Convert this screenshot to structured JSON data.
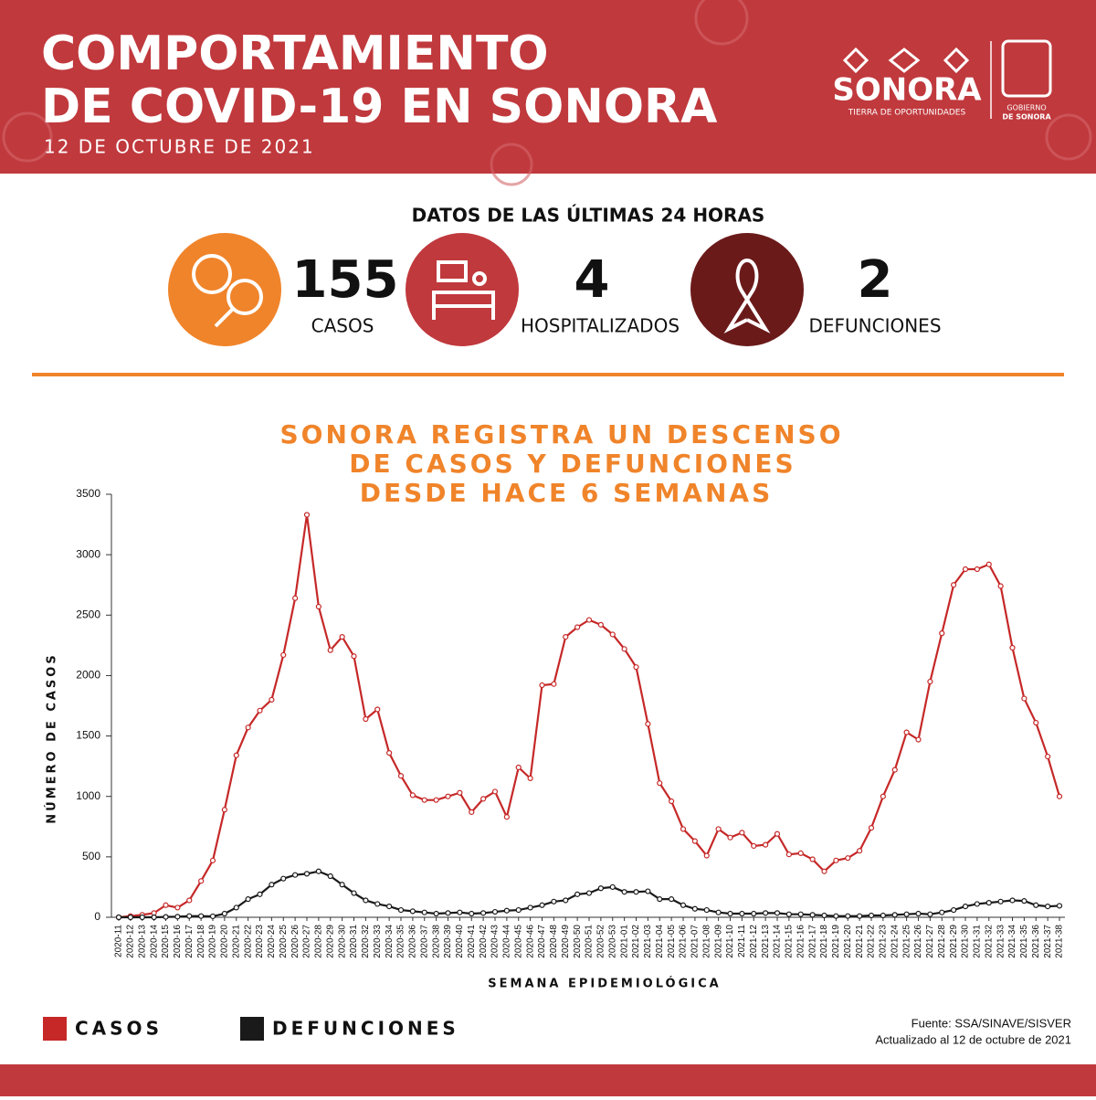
{
  "header": {
    "title_lines": [
      "COMPORTAMIENTO",
      "DE COVID-19 EN SONORA"
    ],
    "date": "12 DE OCTUBRE DE 2021",
    "logo": {
      "name": "SONORA",
      "tagline": "TIERRA DE OPORTUNIDADES",
      "government_lines": [
        "GOBIERNO",
        "DE SONORA"
      ]
    }
  },
  "stats": {
    "title": "DATOS DE LAS ÚLTIMAS 24 HORAS",
    "items": [
      {
        "value": "155",
        "label": "CASOS"
      },
      {
        "value": "4",
        "label": "HOSPITALIZADOS"
      },
      {
        "value": "2",
        "label": "DEFUNCIONES"
      }
    ]
  },
  "chart_data": {
    "type": "line",
    "title_lines": [
      "SONORA REGISTRA UN DESCENSO",
      "DE CASOS Y DEFUNCIONES",
      "DESDE HACE 6 SEMANAS"
    ],
    "x_label": "SEMANA EPIDEMIOLÓGICA",
    "y_label": "NÚMERO DE CASOS",
    "categories": [
      "2020-11",
      "2020-12",
      "2020-13",
      "2020-14",
      "2020-15",
      "2020-16",
      "2020-17",
      "2020-18",
      "2020-19",
      "2020-20",
      "2020-21",
      "2020-22",
      "2020-23",
      "2020-24",
      "2020-25",
      "2020-26",
      "2020-27",
      "2020-28",
      "2020-29",
      "2020-30",
      "2020-31",
      "2020-32",
      "2020-33",
      "2020-34",
      "2020-35",
      "2020-36",
      "2020-37",
      "2020-38",
      "2020-39",
      "2020-40",
      "2020-41",
      "2020-42",
      "2020-43",
      "2020-44",
      "2020-45",
      "2020-46",
      "2020-47",
      "2020-48",
      "2020-49",
      "2020-50",
      "2020-51",
      "2020-52",
      "2020-53",
      "2021-01",
      "2021-02",
      "2021-03",
      "2021-04",
      "2021-05",
      "2021-06",
      "2021-07",
      "2021-08",
      "2021-09",
      "2021-10",
      "2021-11",
      "2021-12",
      "2021-13",
      "2021-14",
      "2021-15",
      "2021-16",
      "2021-17",
      "2021-18",
      "2021-19",
      "2021-20",
      "2021-21",
      "2021-22",
      "2021-23",
      "2021-24",
      "2021-25",
      "2021-26",
      "2021-27",
      "2021-28",
      "2021-29",
      "2021-30",
      "2021-31",
      "2021-32",
      "2021-33",
      "2021-34",
      "2021-35",
      "2021-36",
      "2021-37",
      "2021-38"
    ],
    "series": [
      {
        "name": "CASOS",
        "color": "#c62828",
        "values": [
          0,
          10,
          20,
          35,
          100,
          80,
          140,
          300,
          470,
          890,
          1340,
          1570,
          1710,
          1800,
          2170,
          2640,
          3330,
          2570,
          2210,
          2320,
          2160,
          1640,
          1720,
          1360,
          1170,
          1010,
          970,
          970,
          1000,
          1030,
          870,
          980,
          1040,
          830,
          1240,
          1150,
          1920,
          1930,
          2320,
          2400,
          2460,
          2420,
          2340,
          2220,
          2070,
          1600,
          1110,
          960,
          730,
          630,
          510,
          730,
          660,
          700,
          590,
          600,
          690,
          520,
          530,
          480,
          380,
          470,
          490,
          550,
          740,
          1000,
          1220,
          1530,
          1470,
          1950,
          2350,
          2750,
          2880,
          2880,
          2920,
          2740,
          2230,
          1810,
          1610,
          1330,
          1000
        ]
      },
      {
        "name": "DEFUNCIONES",
        "color": "#1a1a1a",
        "values": [
          0,
          0,
          0,
          0,
          3,
          5,
          10,
          10,
          8,
          30,
          80,
          150,
          190,
          270,
          320,
          350,
          360,
          380,
          340,
          270,
          200,
          140,
          110,
          90,
          60,
          50,
          40,
          30,
          35,
          40,
          30,
          35,
          45,
          55,
          60,
          80,
          100,
          130,
          140,
          190,
          200,
          240,
          250,
          210,
          210,
          215,
          150,
          150,
          100,
          70,
          60,
          40,
          30,
          30,
          30,
          35,
          35,
          25,
          25,
          20,
          15,
          10,
          10,
          10,
          15,
          15,
          20,
          25,
          30,
          25,
          40,
          60,
          90,
          110,
          120,
          130,
          140,
          135,
          100,
          90,
          95
        ]
      }
    ],
    "ylim": [
      0,
      3500
    ],
    "yticks": [
      0,
      500,
      1000,
      1500,
      2000,
      2500,
      3000,
      3500
    ],
    "annotations": [
      "Fuente: SSA/SINAVE/SISVER",
      "Actualizado al 12 de octubre de 2021"
    ]
  }
}
